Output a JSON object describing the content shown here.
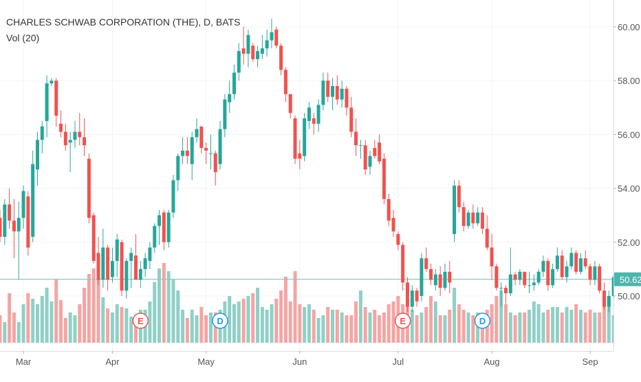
{
  "header": {
    "title": "CHARLES SCHWAB CORPORATION (THE), D, BATS",
    "indicator": "Vol (20)"
  },
  "colors": {
    "up": "#26a69a",
    "down": "#ef5350",
    "up_volume": "#8fd0c7",
    "down_volume": "#f4a5a3",
    "last_price_line": "#80cbc4",
    "last_price_tag": "#4db6ac",
    "earnings": "#ef5350",
    "dividend": "#2196f3",
    "grid": "#f0f3fa",
    "axis_text": "#555555"
  },
  "chart_data": {
    "type": "candlestick",
    "title": "CHARLES SCHWAB CORPORATION (THE), D, BATS",
    "ylim": [
      48.6,
      60.6
    ],
    "y_ticks": [
      50.0,
      52.0,
      54.0,
      56.0,
      58.0,
      60.0
    ],
    "y_tick_labels": [
      "50.00",
      "52.00",
      "54.00",
      "56.00",
      "58.00",
      "60.00"
    ],
    "x_tick_labels": [
      "Mar",
      "Apr",
      "May",
      "Jun",
      "Jul",
      "Aug",
      "Sep"
    ],
    "last_price": 50.62,
    "last_price_label": "50.62",
    "grid": true,
    "ohlc": [
      [
        52.9,
        53.2,
        52.0,
        52.2
      ],
      [
        52.2,
        53.6,
        51.9,
        53.4
      ],
      [
        53.4,
        54.0,
        52.5,
        52.8
      ],
      [
        52.8,
        53.6,
        51.4,
        52.4
      ],
      [
        52.4,
        53.5,
        50.6,
        52.9
      ],
      [
        52.9,
        54.1,
        52.5,
        53.9
      ],
      [
        53.7,
        53.9,
        51.5,
        51.8
      ],
      [
        52.2,
        55.4,
        52.0,
        54.9
      ],
      [
        54.7,
        56.1,
        54.1,
        55.8
      ],
      [
        55.8,
        56.5,
        55.3,
        56.3
      ],
      [
        56.5,
        58.2,
        55.9,
        57.9
      ],
      [
        57.9,
        58.1,
        57.8,
        58.0
      ],
      [
        58.0,
        58.1,
        56.3,
        56.7
      ],
      [
        56.4,
        56.9,
        55.9,
        56.1
      ],
      [
        56.1,
        56.4,
        55.4,
        55.6
      ],
      [
        55.7,
        56.1,
        54.6,
        55.8
      ],
      [
        55.8,
        56.5,
        55.5,
        56.1
      ],
      [
        56.1,
        56.8,
        55.6,
        55.9
      ],
      [
        55.9,
        56.6,
        55.2,
        55.6
      ],
      [
        55.1,
        55.3,
        52.7,
        52.9
      ],
      [
        53.0,
        53.1,
        51.2,
        51.3
      ],
      [
        51.6,
        52.2,
        50.4,
        50.6
      ],
      [
        50.6,
        52.5,
        50.3,
        51.8
      ],
      [
        51.8,
        51.9,
        50.2,
        50.6
      ],
      [
        50.7,
        51.8,
        50.5,
        51.3
      ],
      [
        51.3,
        52.3,
        50.7,
        52.1
      ],
      [
        52.0,
        52.1,
        50.0,
        50.2
      ],
      [
        50.2,
        51.4,
        49.9,
        51.3
      ],
      [
        51.3,
        51.8,
        50.3,
        51.6
      ],
      [
        51.5,
        52.3,
        50.6,
        50.6
      ],
      [
        50.6,
        51.3,
        50.3,
        51.0
      ],
      [
        51.0,
        51.6,
        50.7,
        51.4
      ],
      [
        51.3,
        52.0,
        51.0,
        51.8
      ],
      [
        51.8,
        52.7,
        51.6,
        52.6
      ],
      [
        52.6,
        53.2,
        51.9,
        53.0
      ],
      [
        53.1,
        53.2,
        51.7,
        52.0
      ],
      [
        52.0,
        53.2,
        51.8,
        53.1
      ],
      [
        53.1,
        54.5,
        52.9,
        54.3
      ],
      [
        54.3,
        55.3,
        53.9,
        55.2
      ],
      [
        55.2,
        55.9,
        54.9,
        55.4
      ],
      [
        55.4,
        55.9,
        54.9,
        55.2
      ],
      [
        54.9,
        56.1,
        54.3,
        55.9
      ],
      [
        55.9,
        56.6,
        55.7,
        56.2
      ],
      [
        56.3,
        56.3,
        55.3,
        55.5
      ],
      [
        55.5,
        55.7,
        54.9,
        55.4
      ],
      [
        55.3,
        56.0,
        54.7,
        55.3
      ],
      [
        55.3,
        55.4,
        54.1,
        54.6
      ],
      [
        54.9,
        56.5,
        54.7,
        56.2
      ],
      [
        56.2,
        57.5,
        55.9,
        57.3
      ],
      [
        57.2,
        58.0,
        56.8,
        57.5
      ],
      [
        57.5,
        58.6,
        57.3,
        58.3
      ],
      [
        58.3,
        59.4,
        58.0,
        59.1
      ],
      [
        59.2,
        60.0,
        58.6,
        59.0
      ],
      [
        59.0,
        59.9,
        58.5,
        59.7
      ],
      [
        59.3,
        59.4,
        58.7,
        58.8
      ],
      [
        58.8,
        59.3,
        58.5,
        59.1
      ],
      [
        59.0,
        59.7,
        58.8,
        59.2
      ],
      [
        59.2,
        59.9,
        58.9,
        59.5
      ],
      [
        59.5,
        60.3,
        59.2,
        59.8
      ],
      [
        59.9,
        60.0,
        59.2,
        59.3
      ],
      [
        59.3,
        59.4,
        58.2,
        58.4
      ],
      [
        58.4,
        58.5,
        57.2,
        57.5
      ],
      [
        57.5,
        57.5,
        56.6,
        56.8
      ],
      [
        56.6,
        56.7,
        54.9,
        55.1
      ],
      [
        55.3,
        55.8,
        54.7,
        55.1
      ],
      [
        55.2,
        56.8,
        55.0,
        56.6
      ],
      [
        56.5,
        57.2,
        56.2,
        57.0
      ],
      [
        56.6,
        56.8,
        56.0,
        56.4
      ],
      [
        56.4,
        57.3,
        56.1,
        57.1
      ],
      [
        57.1,
        58.3,
        56.9,
        58.0
      ],
      [
        58.0,
        58.3,
        57.2,
        57.4
      ],
      [
        57.4,
        58.1,
        56.9,
        57.8
      ],
      [
        57.8,
        58.2,
        57.1,
        57.3
      ],
      [
        57.3,
        58.0,
        57.0,
        57.7
      ],
      [
        57.7,
        57.8,
        56.7,
        57.0
      ],
      [
        57.0,
        57.4,
        55.9,
        56.1
      ],
      [
        56.1,
        56.6,
        55.2,
        55.6
      ],
      [
        55.6,
        55.8,
        55.1,
        55.6
      ],
      [
        55.6,
        55.8,
        54.5,
        54.7
      ],
      [
        54.8,
        55.4,
        54.5,
        55.2
      ],
      [
        55.5,
        55.8,
        55.1,
        55.2
      ],
      [
        55.7,
        56.0,
        54.9,
        55.0
      ],
      [
        55.1,
        55.3,
        53.4,
        53.6
      ],
      [
        53.6,
        53.8,
        52.6,
        52.8
      ],
      [
        52.9,
        53.2,
        52.2,
        52.4
      ],
      [
        52.3,
        52.4,
        51.7,
        51.9
      ],
      [
        51.9,
        52.0,
        50.2,
        50.5
      ],
      [
        50.5,
        50.7,
        49.4,
        49.6
      ],
      [
        49.6,
        50.4,
        49.4,
        50.2
      ],
      [
        50.2,
        50.3,
        49.6,
        49.8
      ],
      [
        50.0,
        51.6,
        49.8,
        51.4
      ],
      [
        51.4,
        51.8,
        50.9,
        51.0
      ],
      [
        51.0,
        51.2,
        50.4,
        50.6
      ],
      [
        50.4,
        51.0,
        50.2,
        50.8
      ],
      [
        50.8,
        51.1,
        50.0,
        50.3
      ],
      [
        50.3,
        51.2,
        50.2,
        50.9
      ],
      [
        50.9,
        51.3,
        50.1,
        50.5
      ],
      [
        52.3,
        54.3,
        52.0,
        54.1
      ],
      [
        54.1,
        54.3,
        53.1,
        53.3
      ],
      [
        53.3,
        53.5,
        52.4,
        52.6
      ],
      [
        52.6,
        53.2,
        52.5,
        53.1
      ],
      [
        53.1,
        53.4,
        52.5,
        52.7
      ],
      [
        52.7,
        53.3,
        52.6,
        53.1
      ],
      [
        53.1,
        53.3,
        52.3,
        52.5
      ],
      [
        52.5,
        53.0,
        51.7,
        51.8
      ],
      [
        51.8,
        52.3,
        50.6,
        51.1
      ],
      [
        51.1,
        51.2,
        50.2,
        50.3
      ],
      [
        50.3,
        50.5,
        49.6,
        50.3
      ],
      [
        50.3,
        50.4,
        49.7,
        50.1
      ],
      [
        50.1,
        51.8,
        50.0,
        50.8
      ],
      [
        50.8,
        50.9,
        50.4,
        50.6
      ],
      [
        50.6,
        51.0,
        50.4,
        50.9
      ],
      [
        50.9,
        50.9,
        50.3,
        50.4
      ],
      [
        50.4,
        50.9,
        50.1,
        50.4
      ],
      [
        50.4,
        50.8,
        50.2,
        50.5
      ],
      [
        50.5,
        51.0,
        50.4,
        50.9
      ],
      [
        50.9,
        51.5,
        50.7,
        51.3
      ],
      [
        51.3,
        51.4,
        50.2,
        50.4
      ],
      [
        50.4,
        51.2,
        50.3,
        51.0
      ],
      [
        51.0,
        51.8,
        50.9,
        51.5
      ],
      [
        51.5,
        51.7,
        50.6,
        50.7
      ],
      [
        50.7,
        51.3,
        50.5,
        51.1
      ],
      [
        51.1,
        51.8,
        51.0,
        51.6
      ],
      [
        51.6,
        51.7,
        50.8,
        50.9
      ],
      [
        50.9,
        51.6,
        50.8,
        51.4
      ],
      [
        51.4,
        51.7,
        51.0,
        51.1
      ],
      [
        51.1,
        51.2,
        50.4,
        50.6
      ],
      [
        50.6,
        51.3,
        50.4,
        51.1
      ],
      [
        51.1,
        51.2,
        50.1,
        50.2
      ],
      [
        50.2,
        50.5,
        49.5,
        49.6
      ],
      [
        49.6,
        50.2,
        49.4,
        50.0
      ],
      [
        50.0,
        50.8,
        49.9,
        50.7
      ]
    ],
    "volume": [
      0.2,
      0.15,
      0.36,
      0.22,
      0.15,
      0.28,
      0.36,
      0.32,
      0.28,
      0.34,
      0.4,
      0.3,
      0.46,
      0.31,
      0.18,
      0.22,
      0.2,
      0.28,
      0.4,
      0.5,
      0.54,
      0.47,
      0.33,
      0.25,
      0.22,
      0.28,
      0.26,
      0.25,
      0.19,
      0.2,
      0.24,
      0.24,
      0.3,
      0.44,
      0.54,
      0.58,
      0.52,
      0.46,
      0.38,
      0.24,
      0.18,
      0.24,
      0.2,
      0.26,
      0.2,
      0.22,
      0.22,
      0.24,
      0.3,
      0.34,
      0.28,
      0.3,
      0.32,
      0.34,
      0.36,
      0.4,
      0.26,
      0.24,
      0.28,
      0.32,
      0.38,
      0.48,
      0.3,
      0.52,
      0.28,
      0.26,
      0.28,
      0.24,
      0.18,
      0.2,
      0.26,
      0.24,
      0.24,
      0.22,
      0.2,
      0.2,
      0.3,
      0.38,
      0.26,
      0.22,
      0.24,
      0.2,
      0.22,
      0.28,
      0.3,
      0.34,
      0.28,
      0.32,
      0.24,
      0.2,
      0.22,
      0.26,
      0.34,
      0.3,
      0.2,
      0.2,
      0.24,
      0.4,
      0.28,
      0.24,
      0.22,
      0.2,
      0.22,
      0.2,
      0.24,
      0.28,
      0.34,
      0.38,
      0.28,
      0.22,
      0.2,
      0.22,
      0.22,
      0.24,
      0.3,
      0.28,
      0.22,
      0.24,
      0.26,
      0.26,
      0.22,
      0.26,
      0.24,
      0.28,
      0.24,
      0.22,
      0.24,
      0.22,
      0.22,
      0.3,
      0.32,
      0.2
    ],
    "events": [
      {
        "label": "E",
        "kind": "earnings",
        "index": 30
      },
      {
        "label": "D",
        "kind": "dividend",
        "index": 47
      },
      {
        "label": "E",
        "kind": "earnings",
        "index": 86
      },
      {
        "label": "D",
        "kind": "dividend",
        "index": 103
      }
    ]
  }
}
